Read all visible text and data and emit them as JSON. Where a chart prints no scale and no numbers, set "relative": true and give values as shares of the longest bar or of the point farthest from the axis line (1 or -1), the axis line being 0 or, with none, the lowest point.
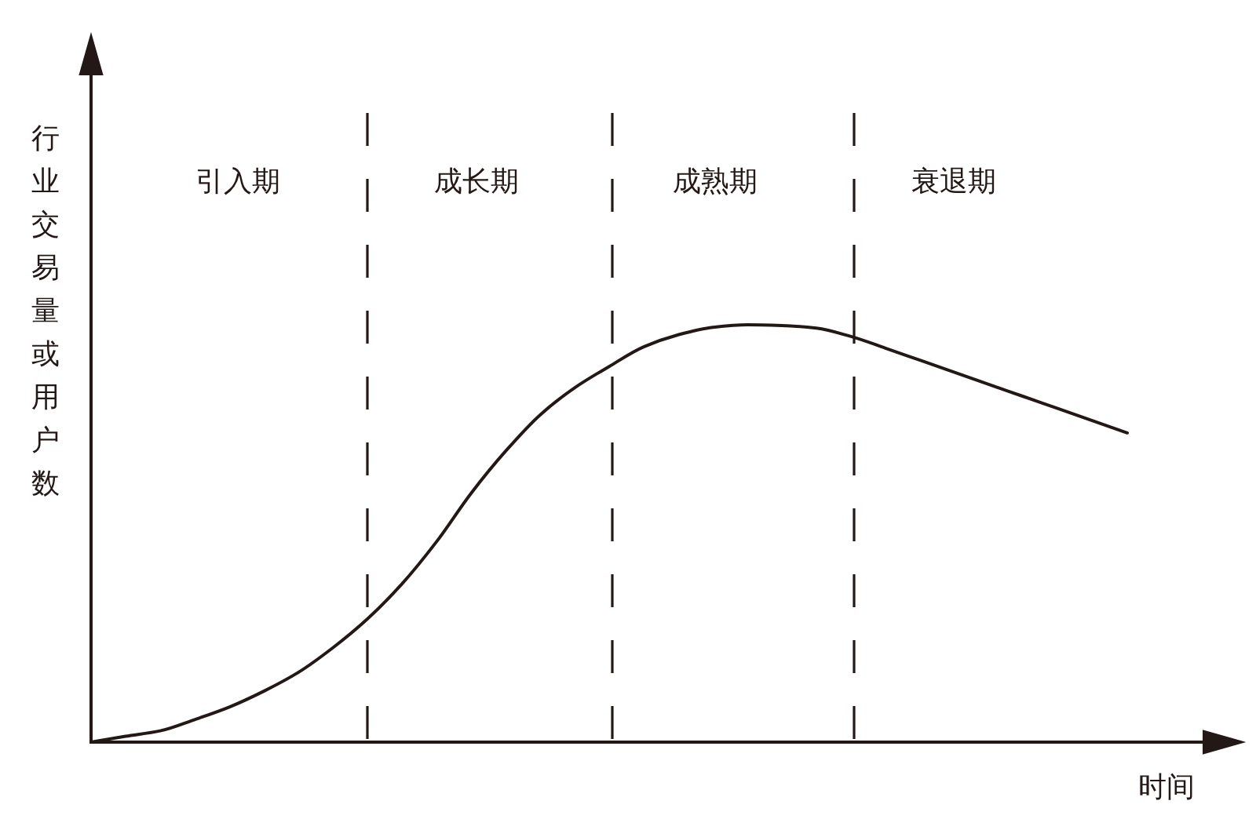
{
  "chart_data": {
    "type": "line",
    "relative": true,
    "grid": "x",
    "xlabel": "时间",
    "ylabel": "行业交易量或用户数",
    "categories": [
      null,
      null,
      null,
      null,
      null,
      null,
      null,
      null,
      null,
      null,
      null,
      null,
      null,
      null,
      null,
      null,
      null,
      null,
      null,
      null,
      null,
      null,
      null,
      null,
      null,
      null,
      null,
      null,
      null,
      null,
      null
    ],
    "series": [
      {
        "color": "#231815",
        "values": [
          0,
          0.014,
          0.027,
          0.054,
          0.084,
          0.122,
          0.167,
          0.226,
          0.295,
          0.379,
          0.48,
          0.596,
          0.697,
          0.784,
          0.849,
          0.9,
          0.947,
          0.976,
          0.994,
          1,
          0.998,
          0.992,
          0.972,
          0.944,
          0.915,
          0.886,
          0.857,
          0.828,
          0.799,
          0.77,
          0.741
        ]
      }
    ],
    "annotations": [
      "引入期",
      "成长期",
      "成熟期",
      "衰退期"
    ]
  }
}
